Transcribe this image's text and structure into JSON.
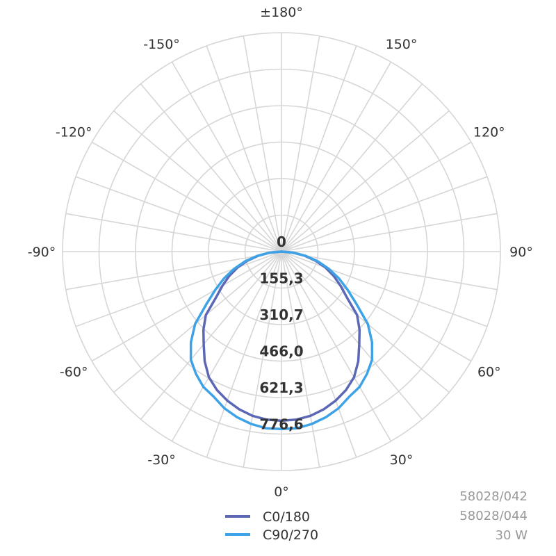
{
  "chart_data": {
    "type": "polar",
    "angle_labels": [
      "±180°",
      "150°",
      "120°",
      "90°",
      "60°",
      "30°",
      "0°",
      "-30°",
      "-60°",
      "-90°",
      "-120°",
      "-150°"
    ],
    "radial_labels": [
      "0",
      "155,3",
      "310,7",
      "466,0",
      "621,3",
      "776,6"
    ],
    "radial_values": [
      0,
      155.3,
      310.7,
      466.0,
      621.3,
      776.6
    ],
    "rmax": 776.6,
    "grid": true,
    "legend_position": "bottom-center",
    "series": [
      {
        "name": "C0/180",
        "color": "#5c68b5",
        "angles": [
          0,
          5,
          10,
          15,
          20,
          25,
          30,
          35,
          40,
          45,
          50,
          55,
          60,
          65,
          70,
          75,
          80,
          85,
          90
        ],
        "values": [
          720,
          718,
          710,
          695,
          675,
          650,
          618,
          570,
          515,
          470,
          420,
          340,
          290,
          245,
          200,
          150,
          100,
          50,
          0
        ]
      },
      {
        "name": "C90/270",
        "color": "#3ea2e6",
        "angles": [
          0,
          5,
          10,
          15,
          20,
          25,
          30,
          35,
          40,
          45,
          50,
          55,
          60,
          65,
          70,
          75,
          80,
          85,
          90
        ],
        "values": [
          755,
          755,
          745,
          730,
          710,
          682,
          665,
          635,
          600,
          545,
          480,
          390,
          325,
          270,
          215,
          160,
          105,
          50,
          0
        ]
      }
    ]
  },
  "legend": {
    "items": [
      {
        "label": "C0/180",
        "color": "#5c68b5"
      },
      {
        "label": "C90/270",
        "color": "#3ea2e6"
      }
    ]
  },
  "product_info": [
    "58028/042",
    "58028/044",
    "30 W"
  ]
}
